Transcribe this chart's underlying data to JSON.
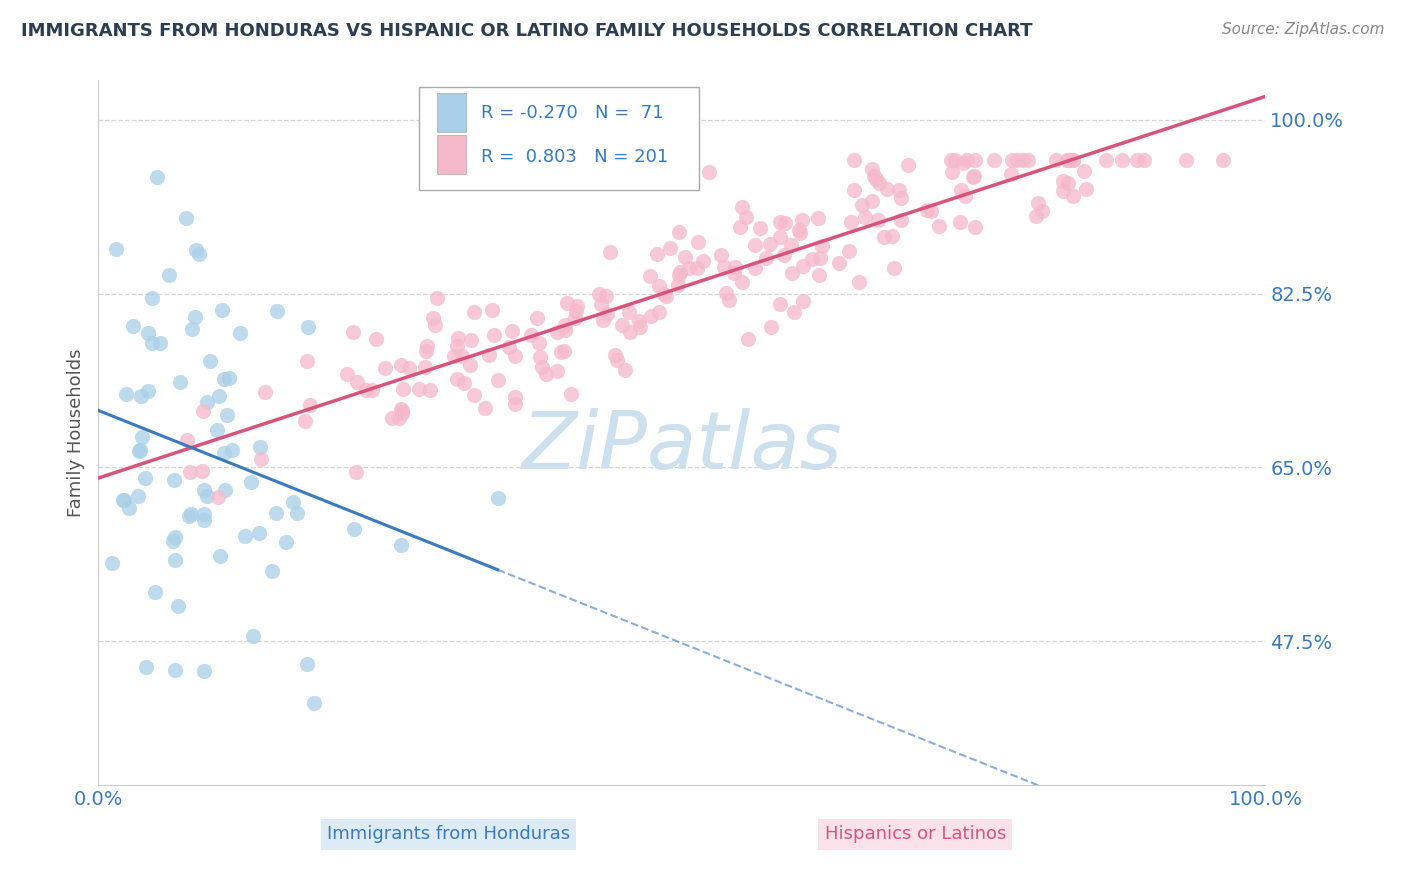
{
  "title": "IMMIGRANTS FROM HONDURAS VS HISPANIC OR LATINO FAMILY HOUSEHOLDS CORRELATION CHART",
  "source": "Source: ZipAtlas.com",
  "ylabel": "Family Households",
  "R_blue": -0.27,
  "N_blue": 71,
  "R_pink": 0.803,
  "N_pink": 201,
  "blue_scatter_color": "#a8cfe8",
  "blue_line_color": "#3a7abf",
  "pink_scatter_color": "#f5b8cb",
  "pink_line_color": "#d9547a",
  "watermark_color": "#cde0ee",
  "background_color": "#ffffff",
  "grid_color": "#cccccc",
  "title_color": "#2c3e50",
  "tick_color": "#3a7abf",
  "ytick_vals": [
    1.0,
    0.825,
    0.65,
    0.475
  ],
  "ytick_labels": [
    "100.0%",
    "82.5%",
    "65.0%",
    "47.5%"
  ],
  "xmin": 0.0,
  "xmax": 1.0,
  "ymin": 0.33,
  "ymax": 1.04,
  "seed": 42
}
